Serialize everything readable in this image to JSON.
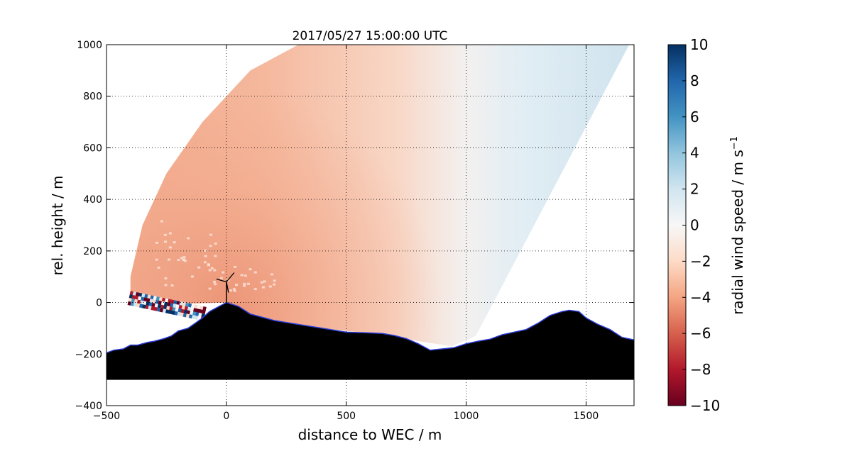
{
  "chart_data": {
    "type": "heatmap",
    "title": "2017/05/27 15:00:00 UTC",
    "xlabel": "distance to WEC / m",
    "ylabel": "rel. height / m",
    "xlim": [
      -500,
      1700
    ],
    "ylim": [
      -400,
      1000
    ],
    "xticks": [
      -500,
      0,
      500,
      1000,
      1500
    ],
    "yticks": [
      -400,
      -200,
      0,
      200,
      400,
      600,
      800,
      1000
    ],
    "x_tick_labels": [
      "−500",
      "0",
      "500",
      "1000",
      "1500"
    ],
    "y_tick_labels": [
      "−400",
      "−200",
      "0",
      "200",
      "400",
      "600",
      "800",
      "1000"
    ],
    "grid": true,
    "colorbar": {
      "label": "radial wind speed / m s",
      "label_superscript": "−1",
      "range": [
        -10,
        10
      ],
      "ticks": [
        -10,
        -8,
        -6,
        -4,
        -2,
        0,
        2,
        4,
        6,
        8,
        10
      ],
      "tick_labels": [
        "−10",
        "−8",
        "−6",
        "−4",
        "−2",
        "0",
        "2",
        "4",
        "6",
        "8",
        "10"
      ],
      "colormap": "RdBu",
      "stops": [
        "#67001f",
        "#b2182b",
        "#d6604d",
        "#f4a582",
        "#fddbc7",
        "#f7f7f7",
        "#d1e5f0",
        "#92c5de",
        "#4393c3",
        "#2166ac",
        "#053061"
      ]
    },
    "terrain_profile": {
      "x": [
        -500,
        -470,
        -430,
        -400,
        -370,
        -330,
        -300,
        -260,
        -230,
        -200,
        -160,
        -130,
        -100,
        -70,
        -40,
        -10,
        0,
        50,
        100,
        200,
        300,
        400,
        500,
        600,
        650,
        700,
        750,
        800,
        850,
        900,
        950,
        1000,
        1050,
        1100,
        1150,
        1200,
        1250,
        1300,
        1350,
        1400,
        1430,
        1470,
        1500,
        1550,
        1600,
        1650,
        1700
      ],
      "y": [
        -195,
        -185,
        -180,
        -165,
        -165,
        -155,
        -150,
        -140,
        -130,
        -110,
        -100,
        -80,
        -60,
        -35,
        -20,
        -5,
        0,
        -15,
        -45,
        -70,
        -85,
        -100,
        -115,
        -118,
        -120,
        -128,
        -140,
        -160,
        -185,
        -180,
        -175,
        -160,
        -150,
        -142,
        -125,
        -115,
        -105,
        -80,
        -50,
        -35,
        -30,
        -35,
        -60,
        -85,
        -105,
        -135,
        -145
      ],
      "base": -300,
      "fill_color": "#000000",
      "edge_color": "#2a3cd6"
    },
    "wind_field": {
      "sector_origin": [
        0,
        0
      ],
      "sector_outer_points": [
        [
          -400,
          -10
        ],
        [
          -400,
          100
        ],
        [
          -350,
          300
        ],
        [
          -250,
          500
        ],
        [
          -100,
          700
        ],
        [
          100,
          900
        ],
        [
          300,
          1000
        ],
        [
          1680,
          1000
        ]
      ],
      "sector_lower_edge": [
        [
          1040,
          -130
        ],
        [
          940,
          -170
        ],
        [
          600,
          -120
        ],
        [
          300,
          -90
        ],
        [
          100,
          -45
        ],
        [
          0,
          0
        ],
        [
          -400,
          -10
        ]
      ],
      "near_field_values": -4,
      "far_field_values": 1.5,
      "noisy_band": {
        "x_start": -400,
        "x_end": -60,
        "y_top": 45,
        "y_bottom": -10
      }
    },
    "wind_turbine": {
      "x": 0,
      "hub_height": 80
    }
  }
}
